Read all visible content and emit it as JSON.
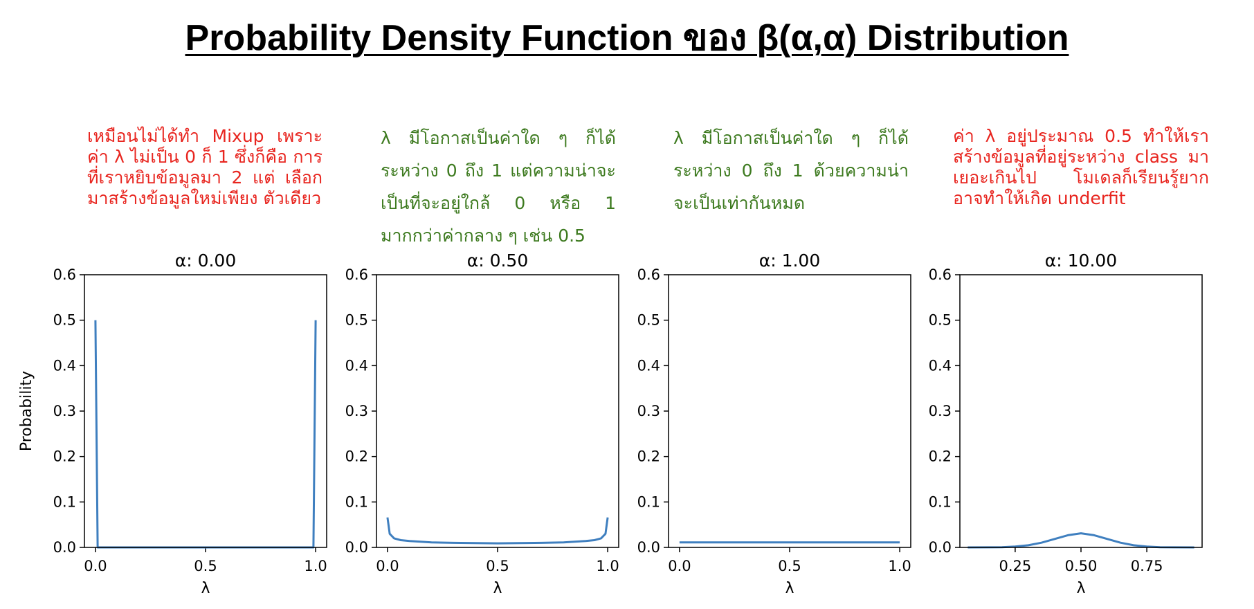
{
  "page": {
    "title": "Probability Density Function ของ β(α,α) Distribution"
  },
  "notes": [
    {
      "text": "เหมือนไม่ได้ทำ Mixup เพราะ ค่า λ ไม่เป็น 0 ก็ 1 ซึ่งก็คือ การที่เราหยิบข้อมูลมา 2 แต่ เลือกมาสร้างข้อมูลใหม่เพียง ตัวเดียว",
      "color": "#e8251f"
    },
    {
      "text": "λ มีโอกาสเป็นค่าใด ๆ ก็ได้ ระหว่าง 0 ถึง 1 แต่ความน่าจะ เป็นที่จะอยู่ใกล้ 0 หรือ 1 มากกว่าค่ากลาง ๆ เช่น 0.5",
      "color": "#3d7a1f"
    },
    {
      "text": "λ มีโอกาสเป็นค่าใด ๆ ก็ได้ ระหว่าง 0 ถึง 1 ด้วยความน่า จะเป็นเท่ากันหมด",
      "color": "#3d7a1f"
    },
    {
      "text": "ค่า λ อยู่ประมาณ 0.5 ทำให้เรา สร้างข้อมูลที่อยู่ระหว่าง class มา เยอะเกินไป โมเดลก็เรียนรู้ยาก อาจทำให้เกิด underfit",
      "color": "#e8251f"
    }
  ],
  "chart_data": [
    {
      "type": "line",
      "title": "α: 0.00",
      "xlabel": "λ",
      "ylabel": "Probability",
      "xlim": [
        -0.05,
        1.05
      ],
      "ylim": [
        0.0,
        0.6
      ],
      "xticks": [
        "0.0",
        "0.5",
        "1.0"
      ],
      "yticks": [
        "0.0",
        "0.1",
        "0.2",
        "0.3",
        "0.4",
        "0.5",
        "0.6"
      ],
      "x": [
        0.0,
        0.01,
        0.02,
        0.5,
        0.98,
        0.99,
        1.0
      ],
      "series": [
        {
          "values": [
            0.5,
            0.0,
            0.0,
            0.0,
            0.0,
            0.0,
            0.5
          ]
        }
      ],
      "color": "#3f7fbf"
    },
    {
      "type": "line",
      "title": "α: 0.50",
      "xlabel": "λ",
      "ylabel": "",
      "xlim": [
        -0.05,
        1.05
      ],
      "ylim": [
        0.0,
        0.6
      ],
      "xticks": [
        "0.0",
        "0.5",
        "1.0"
      ],
      "yticks": [
        "0.0",
        "0.1",
        "0.2",
        "0.3",
        "0.4",
        "0.5",
        "0.6"
      ],
      "x": [
        0.0,
        0.01,
        0.03,
        0.06,
        0.1,
        0.2,
        0.3,
        0.4,
        0.5,
        0.6,
        0.7,
        0.8,
        0.9,
        0.94,
        0.97,
        0.99,
        1.0
      ],
      "series": [
        {
          "values": [
            0.066,
            0.03,
            0.02,
            0.016,
            0.014,
            0.011,
            0.01,
            0.0095,
            0.009,
            0.0095,
            0.01,
            0.011,
            0.014,
            0.016,
            0.02,
            0.03,
            0.066
          ]
        }
      ],
      "color": "#3f7fbf"
    },
    {
      "type": "line",
      "title": "α: 1.00",
      "xlabel": "λ",
      "ylabel": "",
      "xlim": [
        -0.05,
        1.05
      ],
      "ylim": [
        0.0,
        0.6
      ],
      "xticks": [
        "0.0",
        "0.5",
        "1.0"
      ],
      "yticks": [
        "0.0",
        "0.1",
        "0.2",
        "0.3",
        "0.4",
        "0.5",
        "0.6"
      ],
      "x": [
        0.0,
        0.25,
        0.5,
        0.75,
        1.0
      ],
      "series": [
        {
          "values": [
            0.011,
            0.011,
            0.011,
            0.011,
            0.011
          ]
        }
      ],
      "color": "#3f7fbf"
    },
    {
      "type": "line",
      "title": "α: 10.00",
      "xlabel": "λ",
      "ylabel": "",
      "xlim": [
        0.04,
        0.96
      ],
      "ylim": [
        0.0,
        0.6
      ],
      "xticks": [
        "0.25",
        "0.50",
        "0.75"
      ],
      "yticks": [
        "0.0",
        "0.1",
        "0.2",
        "0.3",
        "0.4",
        "0.5",
        "0.6"
      ],
      "x": [
        0.07,
        0.15,
        0.2,
        0.25,
        0.3,
        0.35,
        0.4,
        0.45,
        0.5,
        0.55,
        0.6,
        0.65,
        0.7,
        0.75,
        0.8,
        0.85,
        0.93
      ],
      "series": [
        {
          "values": [
            0.0,
            0.0001,
            0.0005,
            0.0018,
            0.0047,
            0.0104,
            0.0186,
            0.0268,
            0.031,
            0.0268,
            0.0186,
            0.0104,
            0.0047,
            0.0018,
            0.0005,
            0.0001,
            0.0
          ]
        }
      ],
      "color": "#3f7fbf"
    }
  ]
}
